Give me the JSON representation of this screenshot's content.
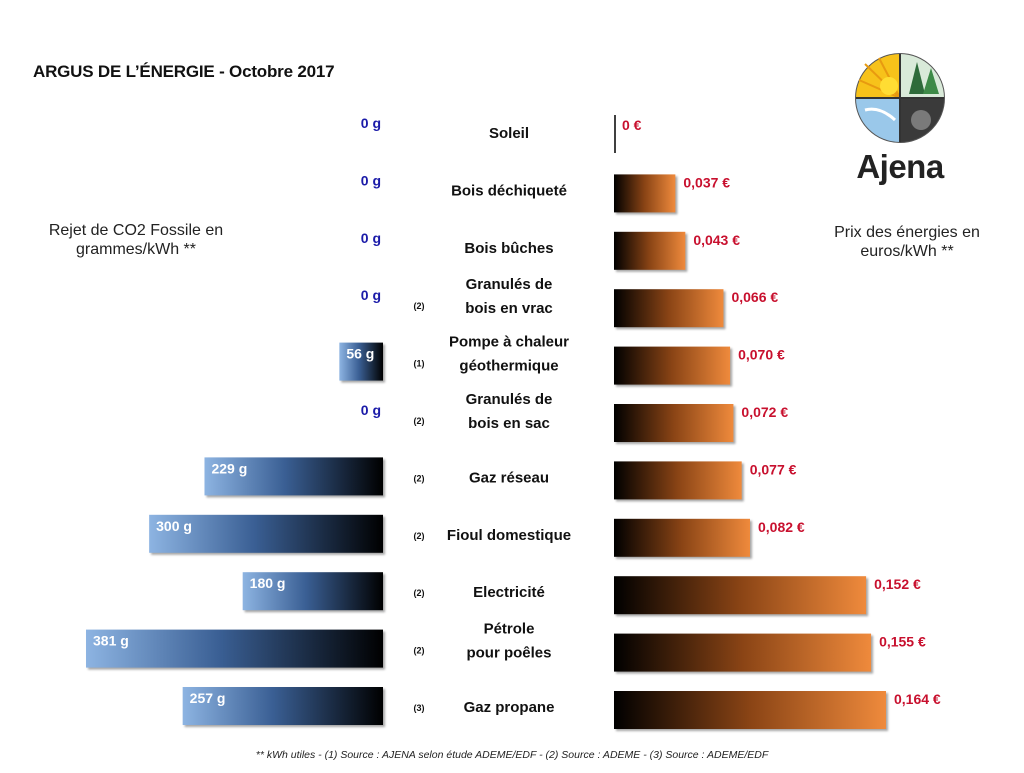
{
  "title": "ARGUS DE L’ÉNERGIE - Octobre 2017",
  "left_label": "Rejet de CO2 Fossile en grammes/kWh **",
  "right_label": "Prix des énergies en euros/kWh **",
  "logo_text": "Ajena",
  "footnote": "** kWh utiles - (1) Source : AJENA selon étude ADEME/EDF - (2) Source : ADEME - (3) Source : ADEME/EDF",
  "colors": {
    "co2_bar_light": "#7fa9dc",
    "co2_bar_dark": "#000000",
    "co2_label_zero": "#1a1aa8",
    "price_bar_light": "#e8813a",
    "price_bar_dark": "#000000",
    "price_label": "#c8102e"
  },
  "chart_data": {
    "type": "bar",
    "categories": [
      "Soleil",
      "Bois déchiqueté",
      "Bois bûches",
      "Granulés de bois en vrac",
      "Pompe à chaleur géothermique",
      "Granulés de bois en sac",
      "Gaz réseau",
      "Fioul domestique",
      "Electricité",
      "Pétrole pour poêles",
      "Gaz propane"
    ],
    "sources": [
      "",
      "",
      "",
      "(2)",
      "(1)",
      "(2)",
      "(2)",
      "(2)",
      "(2)",
      "(2)",
      "(3)"
    ],
    "series": [
      {
        "values": [
          0,
          0,
          0,
          0,
          56,
          0,
          229,
          300,
          180,
          381,
          257
        ],
        "labels": [
          "0 g",
          "0 g",
          "0 g",
          "0 g",
          "56 g",
          "0 g",
          "229 g",
          "300 g",
          "180 g",
          "381 g",
          "257 g"
        ]
      },
      {
        "values": [
          0,
          0.037,
          0.043,
          0.066,
          0.07,
          0.072,
          0.077,
          0.082,
          0.152,
          0.155,
          0.164
        ],
        "labels": [
          "0 €",
          "0,037 €",
          "0,043 €",
          "0,066 €",
          "0,070 €",
          "0,072 €",
          "0,077 €",
          "0,082 €",
          "0,152 €",
          "0,155 €",
          "0,164 €"
        ]
      }
    ]
  }
}
